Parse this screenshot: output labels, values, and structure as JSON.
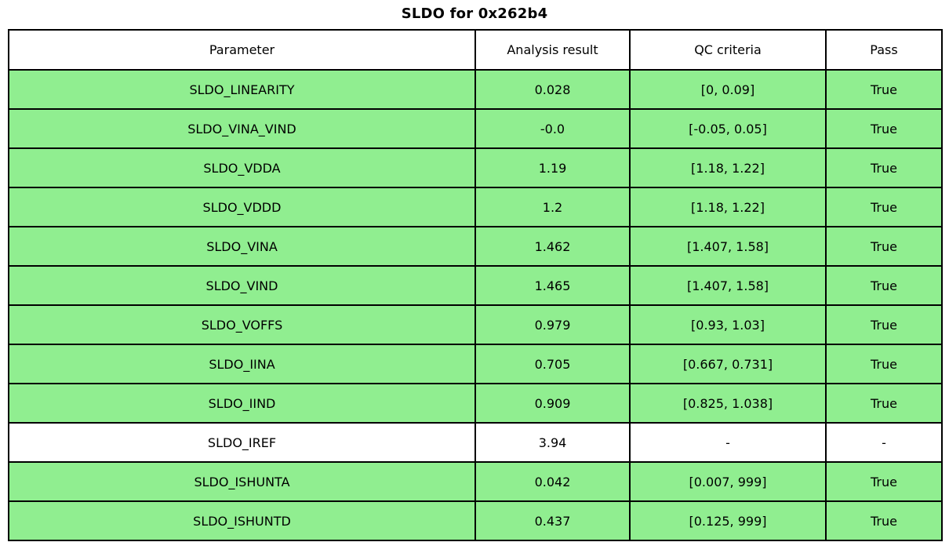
{
  "title": "SLDO for 0x262b4",
  "colors": {
    "pass_row_green": "#90ee90",
    "neutral_row_white": "#ffffff",
    "border_black": "#000000"
  },
  "chart_data": {
    "type": "table",
    "title": "SLDO for 0x262b4",
    "headers": [
      "Parameter",
      "Analysis result",
      "QC criteria",
      "Pass"
    ],
    "rows": [
      {
        "parameter": "SLDO_LINEARITY",
        "result": "0.028",
        "criteria": "[0, 0.09]",
        "pass": "True",
        "state": "pass"
      },
      {
        "parameter": "SLDO_VINA_VIND",
        "result": "-0.0",
        "criteria": "[-0.05, 0.05]",
        "pass": "True",
        "state": "pass"
      },
      {
        "parameter": "SLDO_VDDA",
        "result": "1.19",
        "criteria": "[1.18, 1.22]",
        "pass": "True",
        "state": "pass"
      },
      {
        "parameter": "SLDO_VDDD",
        "result": "1.2",
        "criteria": "[1.18, 1.22]",
        "pass": "True",
        "state": "pass"
      },
      {
        "parameter": "SLDO_VINA",
        "result": "1.462",
        "criteria": "[1.407, 1.58]",
        "pass": "True",
        "state": "pass"
      },
      {
        "parameter": "SLDO_VIND",
        "result": "1.465",
        "criteria": "[1.407, 1.58]",
        "pass": "True",
        "state": "pass"
      },
      {
        "parameter": "SLDO_VOFFS",
        "result": "0.979",
        "criteria": "[0.93, 1.03]",
        "pass": "True",
        "state": "pass"
      },
      {
        "parameter": "SLDO_IINA",
        "result": "0.705",
        "criteria": "[0.667, 0.731]",
        "pass": "True",
        "state": "pass"
      },
      {
        "parameter": "SLDO_IIND",
        "result": "0.909",
        "criteria": "[0.825, 1.038]",
        "pass": "True",
        "state": "pass"
      },
      {
        "parameter": "SLDO_IREF",
        "result": "3.94",
        "criteria": "-",
        "pass": "-",
        "state": "none"
      },
      {
        "parameter": "SLDO_ISHUNTA",
        "result": "0.042",
        "criteria": "[0.007, 999]",
        "pass": "True",
        "state": "pass"
      },
      {
        "parameter": "SLDO_ISHUNTD",
        "result": "0.437",
        "criteria": "[0.125, 999]",
        "pass": "True",
        "state": "pass"
      }
    ]
  }
}
